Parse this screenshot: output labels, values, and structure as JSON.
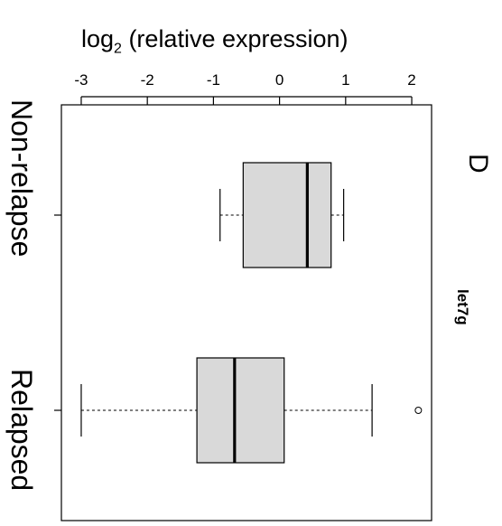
{
  "panel_label": "D",
  "gene_label": "let7g",
  "chart_data": {
    "type": "boxplot",
    "orientation": "horizontal",
    "xlabel_prefix": "log",
    "xlabel_sub": "2",
    "xlabel_rest": " (relative expression)",
    "xlim": [
      -3.3,
      2.3
    ],
    "xticks": [
      -3,
      -2,
      -1,
      0,
      1,
      2
    ],
    "xtick_labels": [
      "-3",
      "-2",
      "-1",
      "0",
      "1",
      "2"
    ],
    "categories": [
      "Non-relapse",
      "Relapsed"
    ],
    "boxes": [
      {
        "category": "Non-relapse",
        "whisker_low": -0.9,
        "q1": -0.55,
        "median": 0.42,
        "q3": 0.78,
        "whisker_high": 0.97,
        "outliers": []
      },
      {
        "category": "Relapsed",
        "whisker_low": -3.0,
        "q1": -1.25,
        "median": -0.68,
        "q3": 0.07,
        "whisker_high": 1.4,
        "outliers": [
          2.1
        ]
      }
    ],
    "colors": {
      "box_fill": "#d9d9d9",
      "line": "#000000"
    }
  }
}
